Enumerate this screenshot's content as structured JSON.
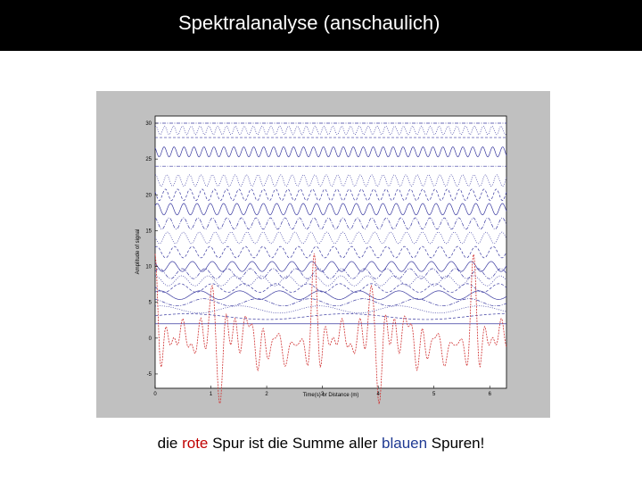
{
  "title": "Spektralanalyse (anschaulich)",
  "caption": {
    "part1": "die ",
    "red_word": "rote",
    "part2": " Spur ist die Summe aller ",
    "blue_word": "blauen",
    "part3": " Spuren!"
  },
  "colors": {
    "red": "#c00000",
    "blue": "#1f3a93",
    "trace_blue": "#3a3aa0",
    "trace_red": "#d03030",
    "panel": "#c0c0c0"
  },
  "chart_data": {
    "type": "line",
    "title": "",
    "xlabel": "Time(s) or Distance (m)",
    "ylabel": "Amplitude of signal",
    "xlim": [
      0,
      6.3
    ],
    "ylim": [
      -7,
      31
    ],
    "x_ticks": [
      0,
      1,
      2,
      3,
      4,
      5,
      6
    ],
    "y_ticks": [
      -5,
      0,
      5,
      10,
      15,
      20,
      25,
      30
    ],
    "grid": false,
    "legend": "none",
    "blue_traces": {
      "count": 20,
      "offsets": [
        2,
        3,
        4,
        5,
        6,
        7,
        8,
        9,
        10,
        12,
        14,
        16,
        18,
        20,
        22,
        24,
        26,
        28,
        29,
        30
      ],
      "frequencies_hz": [
        0,
        0.35,
        0.7,
        1.05,
        1.4,
        1.75,
        2.1,
        2.45,
        2.8,
        3.15,
        3.5,
        3.85,
        4.2,
        4.55,
        4.9,
        0,
        5.6,
        0,
        6.3,
        0
      ],
      "amplitudes": [
        0,
        0.4,
        0.5,
        0.5,
        0.6,
        0.6,
        0.7,
        0.7,
        0.7,
        0.8,
        0.8,
        0.8,
        0.8,
        0.8,
        0.8,
        0,
        0.7,
        0,
        0.6,
        0
      ],
      "phases_rad": [
        0,
        0.3,
        1.2,
        2.1,
        0.8,
        2.9,
        1.6,
        0.4,
        2.4,
        1.0,
        3.0,
        1.8,
        0.6,
        2.6,
        1.4,
        0,
        2.2,
        0,
        1.1,
        0
      ]
    },
    "red_trace": {
      "name": "",
      "offset": 0,
      "description_formula": "sum of blue trace oscillations",
      "scale": 1.6
    }
  }
}
